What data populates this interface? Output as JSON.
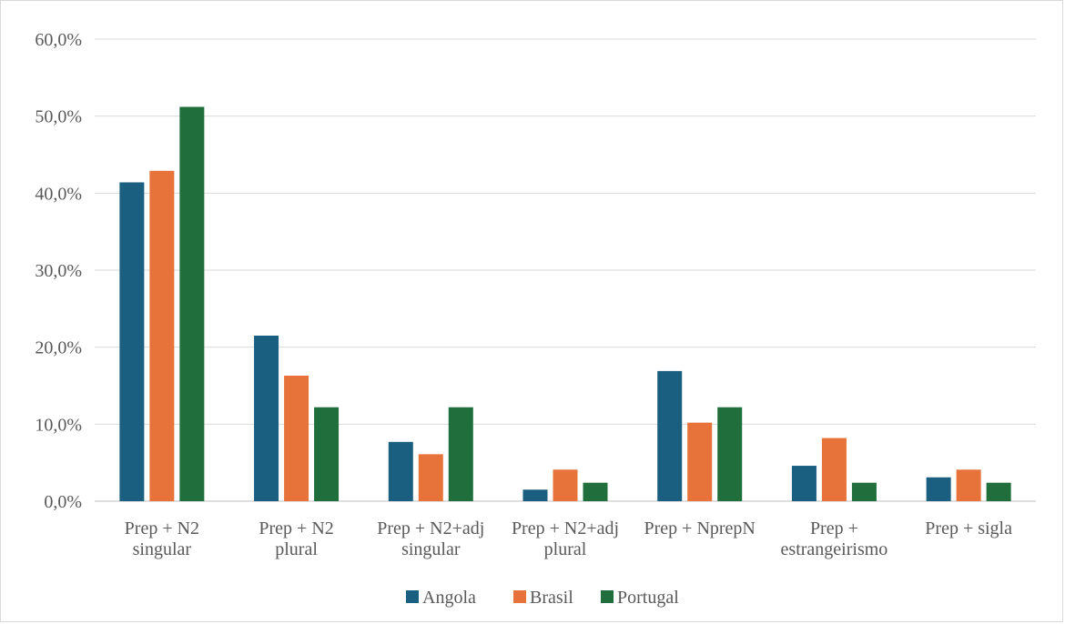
{
  "chart_data": {
    "type": "bar",
    "title": "",
    "xlabel": "",
    "ylabel": "",
    "ylim": [
      0,
      60
    ],
    "y_ticks": [
      "0,0%",
      "10,0%",
      "20,0%",
      "30,0%",
      "40,0%",
      "50,0%",
      "60,0%"
    ],
    "grid": true,
    "legend_position": "bottom",
    "categories": [
      [
        "Prep + N2",
        "singular"
      ],
      [
        "Prep + N2",
        "plural"
      ],
      [
        "Prep + N2+adj",
        "singular"
      ],
      [
        "Prep + N2+adj",
        "plural"
      ],
      [
        "Prep + NprepN"
      ],
      [
        "Prep +",
        "estrangeirismo"
      ],
      [
        "Prep + sigla"
      ]
    ],
    "series": [
      {
        "name": "Angola",
        "color": "#1a5e80",
        "values": [
          41.4,
          21.5,
          7.7,
          1.5,
          16.9,
          4.6,
          3.1
        ]
      },
      {
        "name": "Brasil",
        "color": "#e8733a",
        "values": [
          42.9,
          16.3,
          6.1,
          4.1,
          10.2,
          8.2,
          4.1
        ]
      },
      {
        "name": "Portugal",
        "color": "#1f6e3c",
        "values": [
          51.2,
          12.2,
          12.2,
          2.4,
          12.2,
          2.4,
          2.4
        ]
      }
    ]
  }
}
